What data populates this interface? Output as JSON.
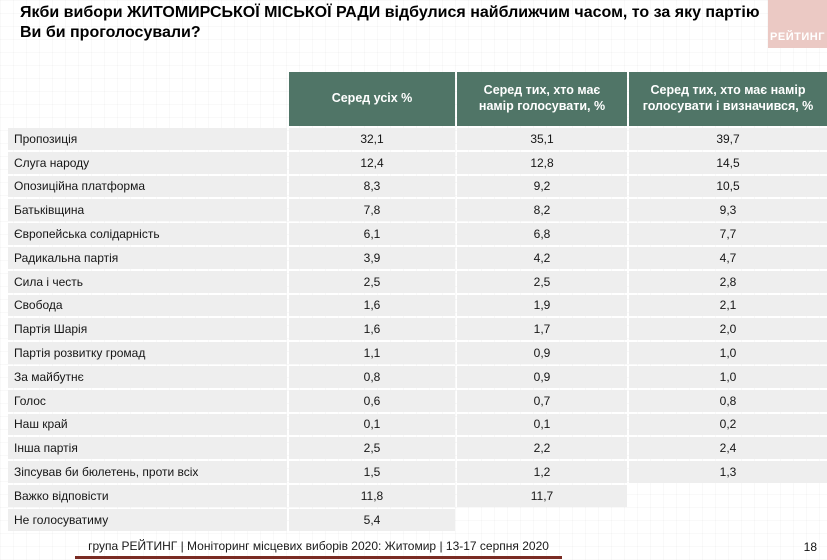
{
  "title": "Якби вибори ЖИТОМИРСЬКОЇ МІСЬКОЇ РАДИ відбулися найближчим часом, то за яку партію Ви би проголосували?",
  "logo": {
    "text": "РЕЙТИНГ"
  },
  "table": {
    "columns": [
      "Серед усіх %",
      "Серед тих, хто має намір голосувати, %",
      "Серед тих, хто має намір голосувати і визначився, %"
    ],
    "rows": [
      {
        "label": "Пропозиція",
        "values": [
          "32,1",
          "35,1",
          "39,7"
        ]
      },
      {
        "label": "Слуга народу",
        "values": [
          "12,4",
          "12,8",
          "14,5"
        ]
      },
      {
        "label": "Опозиційна платформа",
        "values": [
          "8,3",
          "9,2",
          "10,5"
        ]
      },
      {
        "label": "Батьківщина",
        "values": [
          "7,8",
          "8,2",
          "9,3"
        ]
      },
      {
        "label": "Європейська солідарність",
        "values": [
          "6,1",
          "6,8",
          "7,7"
        ]
      },
      {
        "label": "Радикальна партія",
        "values": [
          "3,9",
          "4,2",
          "4,7"
        ]
      },
      {
        "label": "Сила і честь",
        "values": [
          "2,5",
          "2,5",
          "2,8"
        ]
      },
      {
        "label": "Свобода",
        "values": [
          "1,6",
          "1,9",
          "2,1"
        ]
      },
      {
        "label": "Партія Шарія",
        "values": [
          "1,6",
          "1,7",
          "2,0"
        ]
      },
      {
        "label": "Партія розвитку громад",
        "values": [
          "1,1",
          "0,9",
          "1,0"
        ]
      },
      {
        "label": "За майбутнє",
        "values": [
          "0,8",
          "0,9",
          "1,0"
        ]
      },
      {
        "label": "Голос",
        "values": [
          "0,6",
          "0,7",
          "0,8"
        ]
      },
      {
        "label": "Наш край",
        "values": [
          "0,1",
          "0,1",
          "0,2"
        ]
      },
      {
        "label": "Інша партія",
        "values": [
          "2,5",
          "2,2",
          "2,4"
        ]
      },
      {
        "label": "Зіпсував би бюлетень, проти всіх",
        "values": [
          "1,5",
          "1,2",
          "1,3"
        ]
      },
      {
        "label": "Важко відповісти",
        "values": [
          "11,8",
          "11,7",
          null
        ]
      },
      {
        "label": "Не голосуватиму",
        "values": [
          "5,4",
          null,
          null
        ]
      }
    ]
  },
  "footer": {
    "text": "група РЕЙТИНГ | Моніторинг місцевих виборів 2020: Житомир | 13-17 серпня 2020",
    "page": "18"
  },
  "colors": {
    "header_bg": "#507567",
    "row_bg": "#eeeeee",
    "logo_bg": "#ebc9c4",
    "accent_line": "#7a2b23"
  },
  "chart_data": {
    "type": "table",
    "title": "Якби вибори ЖИТОМИРСЬКОЇ МІСЬКОЇ РАДИ відбулися найближчим часом, то за яку партію Ви би проголосували?",
    "categories": [
      "Пропозиція",
      "Слуга народу",
      "Опозиційна платформа",
      "Батьківщина",
      "Європейська солідарність",
      "Радикальна партія",
      "Сила і честь",
      "Свобода",
      "Партія Шарія",
      "Партія розвитку громад",
      "За майбутнє",
      "Голос",
      "Наш край",
      "Інша партія",
      "Зіпсував би бюлетень, проти всіх",
      "Важко відповісти",
      "Не голосуватиму"
    ],
    "series": [
      {
        "name": "Серед усіх %",
        "values": [
          32.1,
          12.4,
          8.3,
          7.8,
          6.1,
          3.9,
          2.5,
          1.6,
          1.6,
          1.1,
          0.8,
          0.6,
          0.1,
          2.5,
          1.5,
          11.8,
          5.4
        ]
      },
      {
        "name": "Серед тих, хто має намір голосувати, %",
        "values": [
          35.1,
          12.8,
          9.2,
          8.2,
          6.8,
          4.2,
          2.5,
          1.9,
          1.7,
          0.9,
          0.9,
          0.7,
          0.1,
          2.2,
          1.2,
          11.7,
          null
        ]
      },
      {
        "name": "Серед тих, хто має намір голосувати і визначився, %",
        "values": [
          39.7,
          14.5,
          10.5,
          9.3,
          7.7,
          4.7,
          2.8,
          2.1,
          2.0,
          1.0,
          1.0,
          0.8,
          0.2,
          2.4,
          1.3,
          null,
          null
        ]
      }
    ]
  }
}
